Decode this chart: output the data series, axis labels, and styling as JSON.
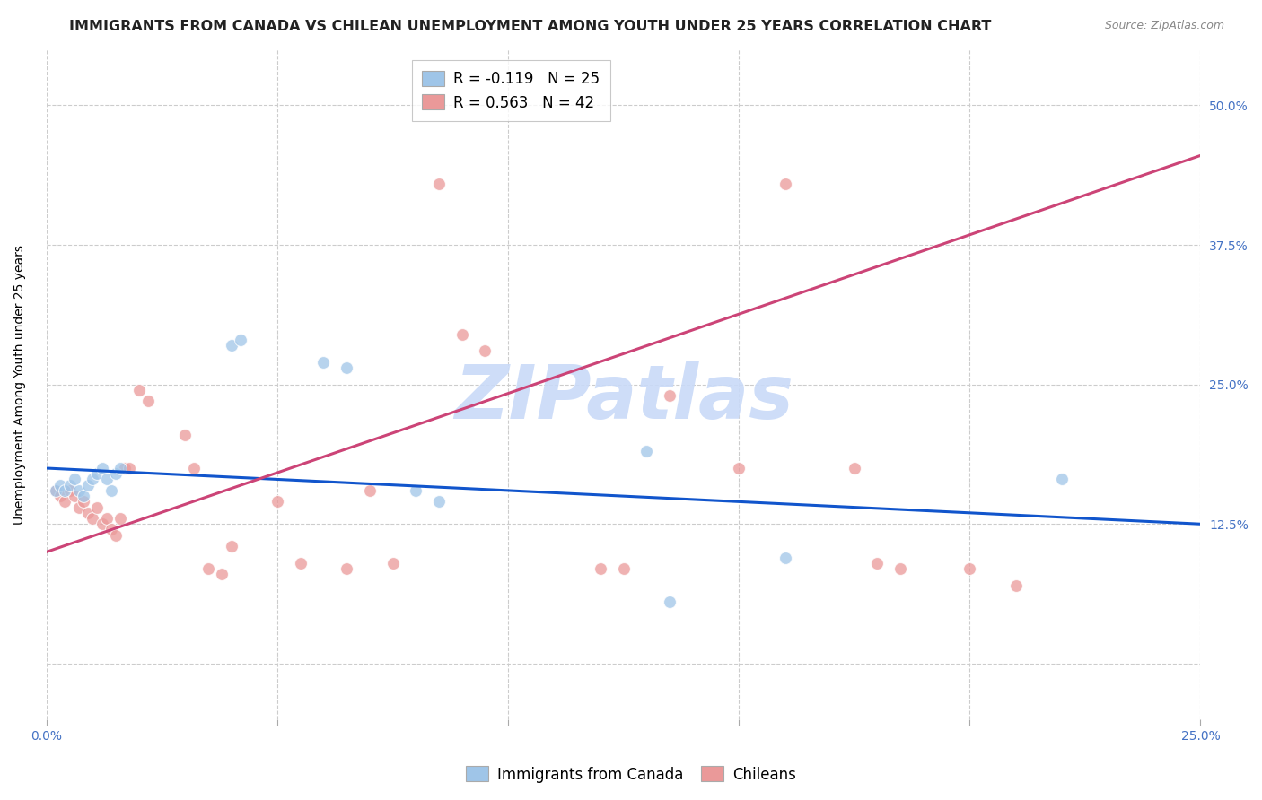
{
  "title": "IMMIGRANTS FROM CANADA VS CHILEAN UNEMPLOYMENT AMONG YOUTH UNDER 25 YEARS CORRELATION CHART",
  "source": "Source: ZipAtlas.com",
  "ylabel": "Unemployment Among Youth under 25 years",
  "xlim": [
    0.0,
    0.25
  ],
  "ylim": [
    -0.05,
    0.55
  ],
  "xticks": [
    0.0,
    0.05,
    0.1,
    0.15,
    0.2,
    0.25
  ],
  "yticks": [
    0.0,
    0.125,
    0.25,
    0.375,
    0.5
  ],
  "watermark": "ZIPatlas",
  "legend_blue_r": "R = -0.119",
  "legend_blue_n": "N = 25",
  "legend_pink_r": "R = 0.563",
  "legend_pink_n": "N = 42",
  "blue_scatter": [
    [
      0.002,
      0.155
    ],
    [
      0.003,
      0.16
    ],
    [
      0.004,
      0.155
    ],
    [
      0.005,
      0.16
    ],
    [
      0.006,
      0.165
    ],
    [
      0.007,
      0.155
    ],
    [
      0.008,
      0.15
    ],
    [
      0.009,
      0.16
    ],
    [
      0.01,
      0.165
    ],
    [
      0.011,
      0.17
    ],
    [
      0.012,
      0.175
    ],
    [
      0.013,
      0.165
    ],
    [
      0.014,
      0.155
    ],
    [
      0.015,
      0.17
    ],
    [
      0.016,
      0.175
    ],
    [
      0.04,
      0.285
    ],
    [
      0.042,
      0.29
    ],
    [
      0.06,
      0.27
    ],
    [
      0.065,
      0.265
    ],
    [
      0.08,
      0.155
    ],
    [
      0.085,
      0.145
    ],
    [
      0.13,
      0.19
    ],
    [
      0.135,
      0.055
    ],
    [
      0.16,
      0.095
    ],
    [
      0.22,
      0.165
    ]
  ],
  "pink_scatter": [
    [
      0.002,
      0.155
    ],
    [
      0.003,
      0.15
    ],
    [
      0.004,
      0.145
    ],
    [
      0.005,
      0.155
    ],
    [
      0.006,
      0.15
    ],
    [
      0.007,
      0.14
    ],
    [
      0.008,
      0.145
    ],
    [
      0.009,
      0.135
    ],
    [
      0.01,
      0.13
    ],
    [
      0.011,
      0.14
    ],
    [
      0.012,
      0.125
    ],
    [
      0.013,
      0.13
    ],
    [
      0.014,
      0.12
    ],
    [
      0.015,
      0.115
    ],
    [
      0.016,
      0.13
    ],
    [
      0.017,
      0.175
    ],
    [
      0.018,
      0.175
    ],
    [
      0.02,
      0.245
    ],
    [
      0.022,
      0.235
    ],
    [
      0.03,
      0.205
    ],
    [
      0.032,
      0.175
    ],
    [
      0.035,
      0.085
    ],
    [
      0.038,
      0.08
    ],
    [
      0.04,
      0.105
    ],
    [
      0.05,
      0.145
    ],
    [
      0.055,
      0.09
    ],
    [
      0.065,
      0.085
    ],
    [
      0.07,
      0.155
    ],
    [
      0.075,
      0.09
    ],
    [
      0.085,
      0.43
    ],
    [
      0.09,
      0.295
    ],
    [
      0.095,
      0.28
    ],
    [
      0.12,
      0.085
    ],
    [
      0.125,
      0.085
    ],
    [
      0.135,
      0.24
    ],
    [
      0.15,
      0.175
    ],
    [
      0.16,
      0.43
    ],
    [
      0.175,
      0.175
    ],
    [
      0.18,
      0.09
    ],
    [
      0.185,
      0.085
    ],
    [
      0.2,
      0.085
    ],
    [
      0.21,
      0.07
    ]
  ],
  "blue_line_x": [
    0.0,
    0.25
  ],
  "blue_line_y": [
    0.175,
    0.125
  ],
  "pink_line_x": [
    0.0,
    0.25
  ],
  "pink_line_y": [
    0.1,
    0.455
  ],
  "blue_color": "#9fc5e8",
  "pink_color": "#ea9999",
  "blue_line_color": "#1155cc",
  "pink_line_color": "#cc4477",
  "grid_color": "#cccccc",
  "title_fontsize": 11.5,
  "axis_label_fontsize": 10,
  "tick_fontsize": 10,
  "legend_fontsize": 12,
  "watermark_color": "#c9daf8",
  "watermark_fontsize": 60,
  "scatter_size": 100,
  "background_color": "#ffffff"
}
